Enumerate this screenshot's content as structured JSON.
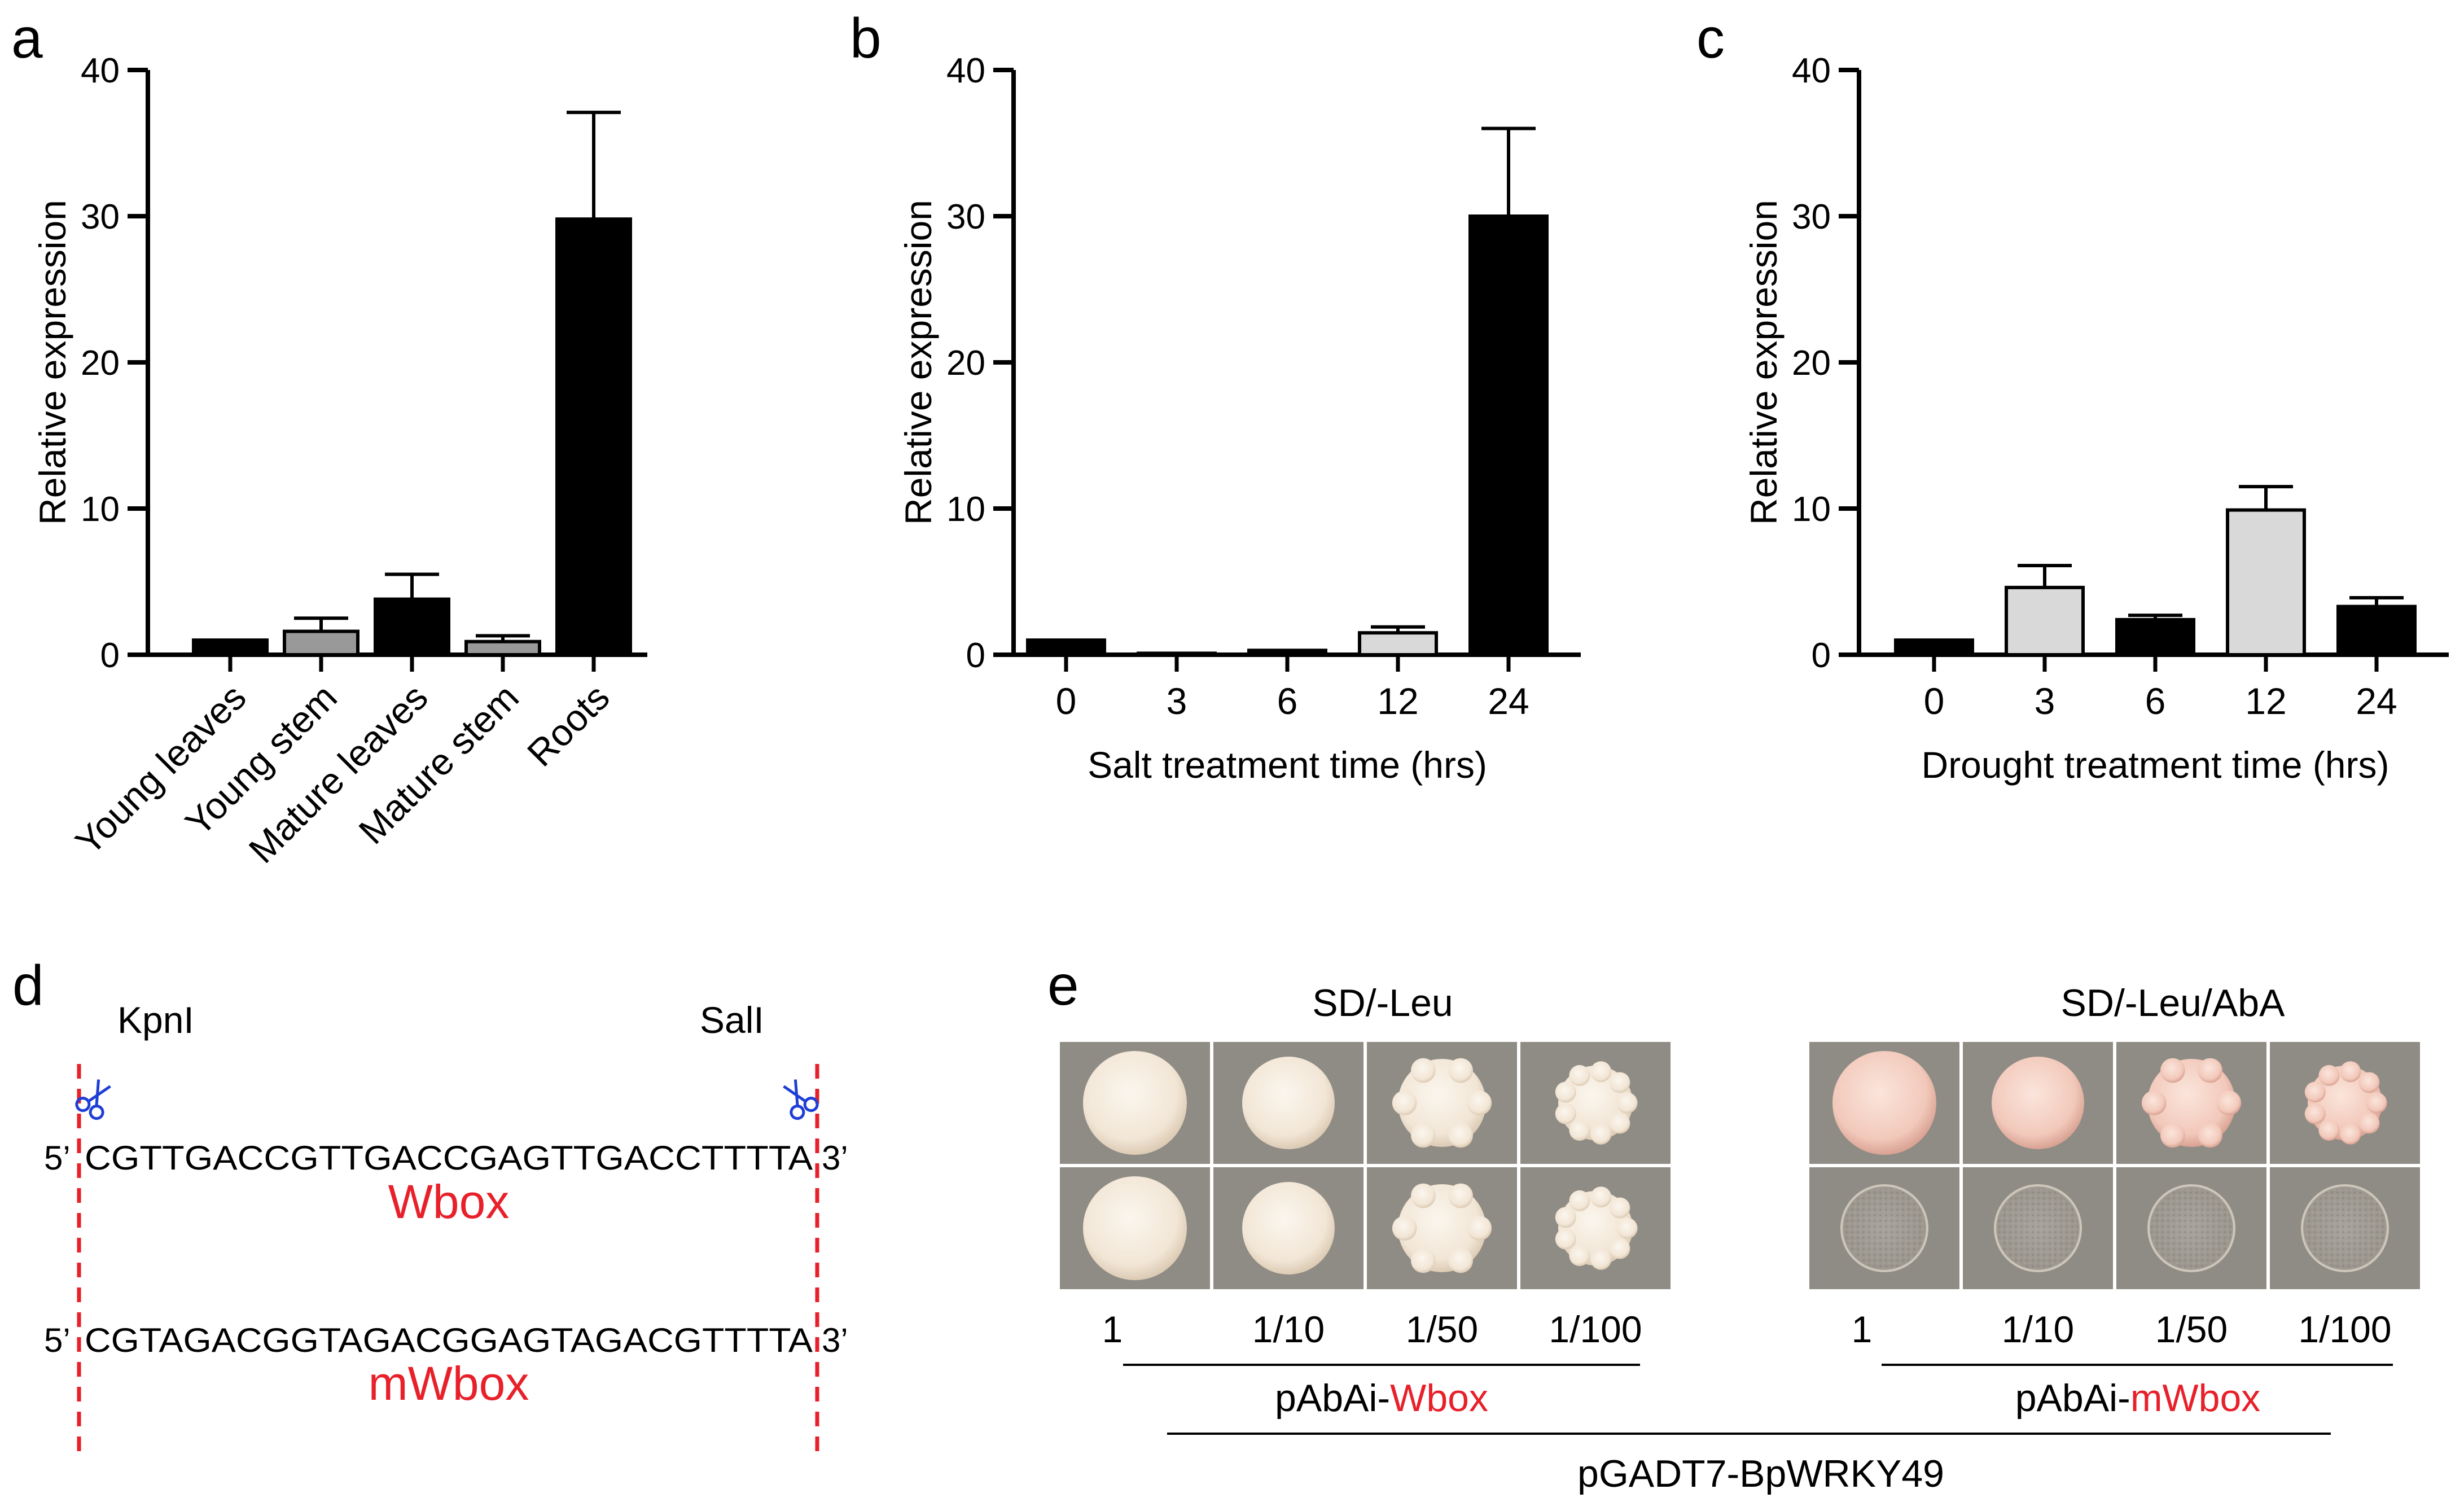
{
  "panels": {
    "a": "a",
    "b": "b",
    "c": "c",
    "d": "d",
    "e": "e"
  },
  "chart_data": [
    {
      "id": "a",
      "type": "bar",
      "title": "",
      "xlabel": "",
      "ylabel": "Relative expression",
      "ylim": [
        0,
        40
      ],
      "yticks": [
        0,
        10,
        20,
        30,
        40
      ],
      "categories": [
        "Young leaves",
        "Young stem",
        "Mature leaves",
        "Mature stem",
        "Roots"
      ],
      "values": [
        1.0,
        1.6,
        3.8,
        0.9,
        29.8
      ],
      "errors": [
        0.0,
        0.9,
        1.7,
        0.4,
        7.3
      ],
      "fills": [
        "#000000",
        "#999999",
        "#000000",
        "#999999",
        "#000000"
      ]
    },
    {
      "id": "b",
      "type": "bar",
      "title": "",
      "xlabel": "Salt treatment time (hrs)",
      "ylabel": "Relative expression",
      "ylim": [
        0,
        40
      ],
      "yticks": [
        0,
        10,
        20,
        30,
        40
      ],
      "categories": [
        "0",
        "3",
        "6",
        "12",
        "24"
      ],
      "values": [
        1.0,
        0.1,
        0.3,
        1.5,
        30.0
      ],
      "errors": [
        0.0,
        0.0,
        0.05,
        0.4,
        6.0
      ],
      "fills": [
        "#000000",
        "#000000",
        "#000000",
        "#d9d9d9",
        "#000000"
      ]
    },
    {
      "id": "c",
      "type": "bar",
      "title": "",
      "xlabel": "Drought treatment time (hrs)",
      "ylabel": "Relative expression",
      "ylim": [
        0,
        40
      ],
      "yticks": [
        0,
        10,
        20,
        30,
        40
      ],
      "categories": [
        "0",
        "3",
        "6",
        "12",
        "24"
      ],
      "values": [
        1.0,
        4.6,
        2.4,
        9.9,
        3.3
      ],
      "errors": [
        0.0,
        1.5,
        0.3,
        1.6,
        0.6
      ],
      "fills": [
        "#000000",
        "#d9d9d9",
        "#000000",
        "#d9d9d9",
        "#000000"
      ]
    }
  ],
  "panel_d": {
    "site_left": "KpnI",
    "site_right": "SalI",
    "seq1": {
      "prime5": "5’",
      "sequence": "CGTTGACCGTTGACCGAGTTGACCTTTTA",
      "prime3": "3’",
      "label": "Wbox"
    },
    "seq2": {
      "prime5": "5’",
      "sequence": "CGTAGACGGTAGACGGAGTAGACGTTTTA",
      "prime3": "3’",
      "label": "mWbox"
    },
    "label_color": "#e8202a",
    "marker_color": "#e8202a",
    "scissor_color": "#1f3ed6"
  },
  "panel_e": {
    "left_header": "SD/-Leu",
    "right_header": "SD/-Leu/AbA",
    "dilutions": [
      "1",
      "1/10",
      "1/50",
      "1/100"
    ],
    "left_group": {
      "prefix": "pAbAi-",
      "highlight": "Wbox"
    },
    "right_group": {
      "prefix": "pAbAi-",
      "highlight": "mWbox"
    },
    "bottom_label": "pGADT7-BpWRKY49",
    "highlight_color": "#e8202a",
    "growth": {
      "SD/-Leu": {
        "Wbox": [
          "growth",
          "growth",
          "growth",
          "growth"
        ],
        "mWbox": [
          "growth",
          "growth",
          "growth",
          "growth"
        ]
      },
      "SD/-Leu/AbA": {
        "Wbox": [
          "growth",
          "growth",
          "growth",
          "growth"
        ],
        "mWbox": [
          "no growth",
          "no growth",
          "no growth",
          "no growth"
        ]
      }
    }
  }
}
